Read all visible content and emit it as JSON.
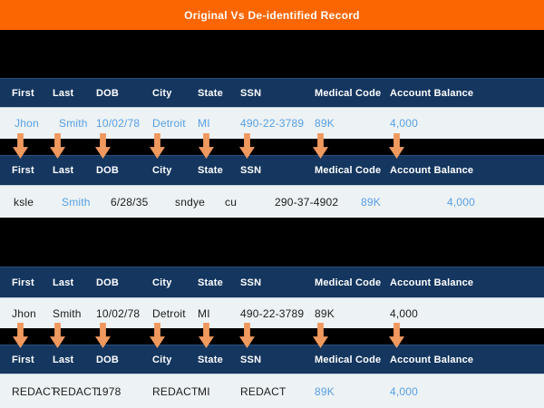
{
  "title_bar": {
    "title": "Original Vs De-identified Record"
  },
  "table": {
    "columns": [
      "First",
      "Last",
      "DOB",
      "City",
      "State",
      "SSN",
      "Medical Code",
      "Account Balance"
    ]
  },
  "records": {
    "original_top": [
      "Jhon",
      "Smith",
      "10/02/78",
      "Detroit",
      "MI",
      "490-22-3789",
      "89K",
      "4,000"
    ],
    "deidentified_top": [
      "ksle",
      "Smith",
      "6/28/35",
      "sndye",
      "cu",
      "290-37-4902",
      "89K",
      "4,000"
    ],
    "original_bottom": [
      "Jhon",
      "Smith",
      "10/02/78",
      "Detroit",
      "MI",
      "490-22-3789",
      "89K",
      "4,000"
    ],
    "deidentified_bottom": [
      "REDACT",
      "REDACT",
      "1978",
      "REDACT",
      "MI",
      "REDACT",
      "89K",
      "4,000"
    ]
  },
  "colors": {
    "title_bar_bg": "#fb6602",
    "header_bg": "#14365f",
    "row_bg": "#edf2f4",
    "background": "#000000",
    "blue_text": "#58a0e4",
    "dark_text": "#1c1c1c",
    "arrow": "#f0995f",
    "header_text": "#ffffff"
  },
  "icons": {
    "down_arrow": "down-arrow"
  }
}
